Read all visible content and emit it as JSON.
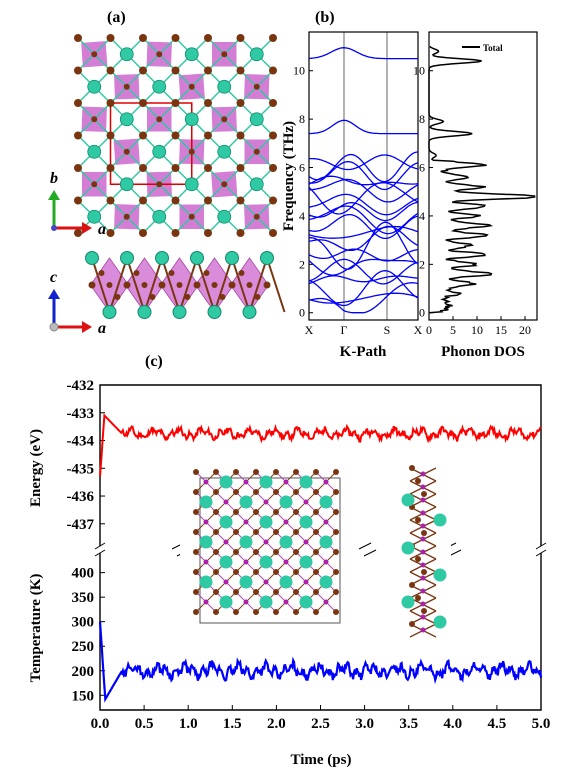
{
  "panels": {
    "a": "(a)",
    "b": "(b)",
    "c": "(c)"
  },
  "colors": {
    "octahedron": "#cc66cc",
    "metal_atom": "#2fc9a4",
    "anion_atom": "#7a3510",
    "bond": "#555555",
    "cell": "#dd0000",
    "energy": "#ff0000",
    "temperature": "#0000ff",
    "band": "#0000ff",
    "dos": "#000000"
  },
  "structure": {
    "top_axes": {
      "vertical": "b",
      "horizontal": "a"
    },
    "side_axes": {
      "vertical": "c",
      "horizontal": "a"
    }
  },
  "chart_data": [
    {
      "type": "line",
      "id": "phonon-bands",
      "ylabel": "Frequency (THz)",
      "xlabel": "K-Path",
      "x_ticks": [
        "X",
        "Γ",
        "S",
        "X"
      ],
      "ylim": [
        -0.3,
        11.6
      ],
      "y_ticks": [
        0,
        2,
        4,
        6,
        8,
        10
      ],
      "band_levels": [
        0.0,
        0.6,
        1.0,
        1.4,
        1.7,
        2.0,
        2.4,
        2.7,
        3.0,
        3.3,
        3.6,
        3.9,
        4.2,
        4.5,
        4.8,
        5.1,
        5.4,
        5.7,
        6.0,
        6.2,
        7.4,
        10.5
      ]
    },
    {
      "type": "area",
      "id": "phonon-dos",
      "xlabel": "Phonon DOS",
      "legend": "Total",
      "xlim": [
        0,
        22.5
      ],
      "x_ticks": [
        0,
        5,
        10,
        15,
        20
      ],
      "ylim": [
        -0.3,
        11.6
      ],
      "peaks": [
        {
          "f": 0.3,
          "d": 1.0
        },
        {
          "f": 0.8,
          "d": 3.0
        },
        {
          "f": 1.2,
          "d": 6.5
        },
        {
          "f": 1.6,
          "d": 11.0
        },
        {
          "f": 2.0,
          "d": 7.0
        },
        {
          "f": 2.4,
          "d": 8.5
        },
        {
          "f": 2.8,
          "d": 6.0
        },
        {
          "f": 3.2,
          "d": 9.0
        },
        {
          "f": 3.6,
          "d": 10.0
        },
        {
          "f": 4.0,
          "d": 7.5
        },
        {
          "f": 4.4,
          "d": 9.0
        },
        {
          "f": 4.8,
          "d": 21.0
        },
        {
          "f": 5.2,
          "d": 8.0
        },
        {
          "f": 5.6,
          "d": 6.0
        },
        {
          "f": 6.1,
          "d": 9.0
        },
        {
          "f": 6.5,
          "d": 1.5
        },
        {
          "f": 7.4,
          "d": 9.0
        },
        {
          "f": 7.9,
          "d": 3.0
        },
        {
          "f": 10.4,
          "d": 11.0
        },
        {
          "f": 10.8,
          "d": 2.0
        }
      ]
    },
    {
      "type": "line",
      "id": "aimd-energy",
      "ylabel": "Energy (eV)",
      "ylim": [
        -437.8,
        -432.0
      ],
      "y_ticks": [
        -437,
        -436,
        -435,
        -434,
        -433,
        -432
      ],
      "xlim": [
        0,
        5
      ],
      "series": [
        {
          "values_start": -435.3,
          "peak": -433.1,
          "mean": -433.75,
          "amplitude": 0.22
        }
      ]
    },
    {
      "type": "line",
      "id": "aimd-temperature",
      "ylabel": "Temperature (K)",
      "xlabel": "Time (ps)",
      "ylim": [
        120,
        440
      ],
      "y_ticks": [
        150,
        200,
        250,
        300,
        350,
        400
      ],
      "xlim": [
        0,
        5
      ],
      "x_ticks": [
        "0.0",
        "0.5",
        "1.0",
        "1.5",
        "2.0",
        "2.5",
        "3.0",
        "3.5",
        "4.0",
        "4.5",
        "5.0"
      ],
      "series": [
        {
          "values_start": 300,
          "minimum": 142,
          "mean": 200,
          "amplitude": 15
        }
      ]
    }
  ]
}
